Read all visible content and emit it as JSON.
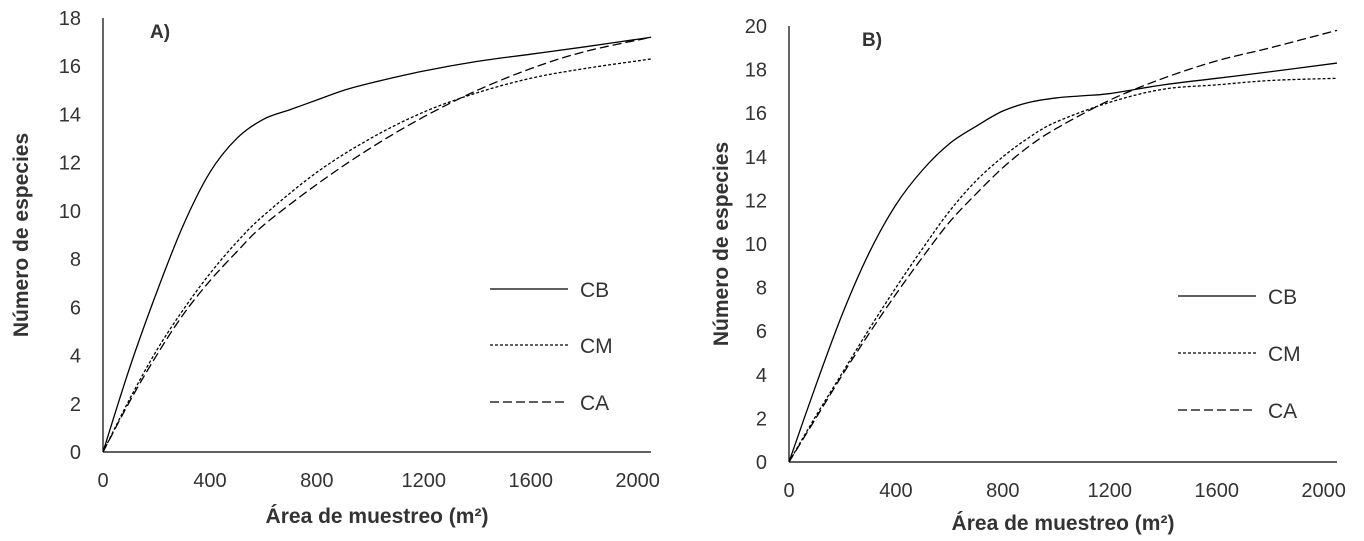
{
  "chart_data": [
    {
      "type": "line",
      "title": "A)",
      "xlabel": "Área de muestreo (m²)",
      "ylabel": "Número de especies",
      "xlim": [
        0,
        2050
      ],
      "ylim": [
        0,
        18
      ],
      "xticks": [
        "0",
        "400",
        "800",
        "1200",
        "1600",
        "2000"
      ],
      "yticks": [
        "0",
        "2",
        "4",
        "6",
        "8",
        "10",
        "12",
        "14",
        "16",
        "18"
      ],
      "grid": false,
      "legend_position": "right",
      "series": [
        {
          "name": "CB",
          "style": "solid",
          "x": [
            0,
            100,
            200,
            300,
            400,
            500,
            600,
            700,
            800,
            900,
            1000,
            1200,
            1400,
            1600,
            1800,
            2050
          ],
          "y": [
            0,
            3.5,
            6.6,
            9.4,
            11.6,
            13.0,
            13.8,
            14.2,
            14.6,
            15.0,
            15.3,
            15.8,
            16.2,
            16.5,
            16.8,
            17.2
          ]
        },
        {
          "name": "CM",
          "style": "dotted",
          "x": [
            0,
            100,
            200,
            300,
            400,
            500,
            600,
            800,
            1000,
            1200,
            1400,
            1600,
            1800,
            2050
          ],
          "y": [
            0,
            2.2,
            4.2,
            5.9,
            7.4,
            8.7,
            9.8,
            11.6,
            13.0,
            14.1,
            14.9,
            15.5,
            15.9,
            16.3
          ]
        },
        {
          "name": "CA",
          "style": "dashed",
          "x": [
            0,
            100,
            200,
            300,
            400,
            500,
            600,
            800,
            1000,
            1200,
            1400,
            1600,
            1800,
            2050
          ],
          "y": [
            0,
            2.1,
            4.0,
            5.7,
            7.1,
            8.3,
            9.4,
            11.1,
            12.6,
            13.9,
            15.0,
            15.9,
            16.6,
            17.2
          ]
        }
      ]
    },
    {
      "type": "line",
      "title": "B)",
      "xlabel": "Área de muestreo (m²)",
      "ylabel": "Número de especies",
      "xlim": [
        0,
        2050
      ],
      "ylim": [
        0,
        20
      ],
      "xticks": [
        "0",
        "400",
        "800",
        "1200",
        "1600",
        "2000"
      ],
      "yticks": [
        "0",
        "2",
        "4",
        "6",
        "8",
        "10",
        "12",
        "14",
        "16",
        "18",
        "20"
      ],
      "grid": false,
      "legend_position": "right",
      "series": [
        {
          "name": "CB",
          "style": "solid",
          "x": [
            0,
            100,
            200,
            300,
            400,
            500,
            600,
            700,
            800,
            900,
            1000,
            1100,
            1200,
            1400,
            1600,
            1800,
            2050
          ],
          "y": [
            0,
            3.5,
            6.8,
            9.6,
            11.8,
            13.4,
            14.6,
            15.4,
            16.1,
            16.5,
            16.7,
            16.8,
            16.9,
            17.3,
            17.6,
            17.9,
            18.3
          ]
        },
        {
          "name": "CM",
          "style": "dotted",
          "x": [
            0,
            100,
            200,
            300,
            400,
            500,
            600,
            700,
            800,
            900,
            1000,
            1200,
            1400,
            1600,
            1800,
            2050
          ],
          "y": [
            0,
            2.1,
            4.1,
            6.1,
            8.0,
            9.8,
            11.5,
            12.9,
            14.0,
            14.9,
            15.6,
            16.5,
            17.1,
            17.3,
            17.5,
            17.6
          ]
        },
        {
          "name": "CA",
          "style": "dashed",
          "x": [
            0,
            100,
            200,
            300,
            400,
            500,
            600,
            700,
            800,
            900,
            1000,
            1200,
            1400,
            1600,
            1800,
            2050
          ],
          "y": [
            0,
            2.0,
            4.0,
            5.9,
            7.7,
            9.4,
            11.0,
            12.3,
            13.5,
            14.5,
            15.3,
            16.6,
            17.6,
            18.4,
            19.0,
            19.8
          ]
        }
      ]
    }
  ]
}
